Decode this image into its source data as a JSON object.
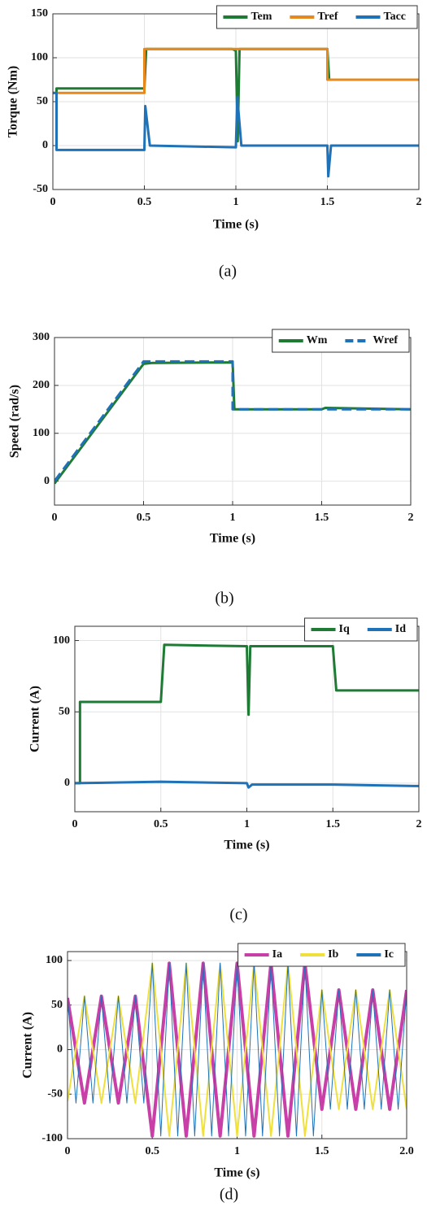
{
  "chart_data": [
    {
      "type": "line",
      "caption": "(a)",
      "xlabel": "Time (s)",
      "ylabel": "Torque (Nm)",
      "xlim": [
        0,
        2
      ],
      "xticks": [
        0,
        0.5,
        1,
        1.5,
        2
      ],
      "ylim": [
        -50,
        150
      ],
      "yticks": [
        -50,
        0,
        50,
        100,
        150
      ],
      "grid": true,
      "legend": "upper right",
      "series": [
        {
          "name": "Tem",
          "color": "#1e7b34",
          "x": [
            0.02,
            0.02,
            0.5,
            0.51,
            0.98,
            1.0,
            1.01,
            1.02,
            1.5,
            1.51,
            2
          ],
          "values": [
            60,
            65,
            65,
            110,
            110,
            108,
            5,
            110,
            110,
            75,
            75
          ]
        },
        {
          "name": "Tref",
          "color": "#e5891e",
          "x": [
            0,
            0.5,
            0.5,
            1.5,
            1.5,
            2
          ],
          "values": [
            60,
            60,
            110,
            110,
            75,
            75
          ]
        },
        {
          "name": "Tacc",
          "color": "#1f72b8",
          "x": [
            0,
            0.02,
            0.02,
            0.5,
            0.505,
            0.53,
            1.0,
            1.008,
            1.03,
            1.5,
            1.505,
            1.52,
            2
          ],
          "values": [
            60,
            60,
            -5,
            -5,
            45,
            0,
            -2,
            55,
            0,
            0,
            -35,
            0,
            0
          ]
        }
      ]
    },
    {
      "type": "line",
      "caption": "(b)",
      "xlabel": "Time (s)",
      "ylabel": "Speed (rad/s)",
      "xlim": [
        0,
        2
      ],
      "xticks": [
        0,
        0.5,
        1,
        1.5,
        2
      ],
      "ylim": [
        -50,
        300
      ],
      "yticks": [
        0,
        100,
        200,
        300
      ],
      "grid": true,
      "legend": "upper right",
      "series": [
        {
          "name": "Wm",
          "color": "#1e7b34",
          "x": [
            0,
            0.5,
            0.55,
            1.0,
            1.01,
            1.5,
            1.52,
            2
          ],
          "values": [
            -5,
            245,
            247,
            248,
            150,
            150,
            153,
            150
          ]
        },
        {
          "name": "Wref",
          "color": "#1f72b8",
          "dash": true,
          "x": [
            0,
            0.5,
            1.0,
            1.0,
            2
          ],
          "values": [
            0,
            250,
            250,
            150,
            150
          ]
        }
      ]
    },
    {
      "type": "line",
      "caption": "(c)",
      "xlabel": "Time (s)",
      "ylabel": "Current (A)",
      "xlim": [
        0,
        2
      ],
      "xticks": [
        0,
        0.5,
        1,
        1.5,
        2
      ],
      "ylim": [
        -20,
        110
      ],
      "yticks": [
        0,
        50,
        100
      ],
      "grid": true,
      "legend": "upper right",
      "series": [
        {
          "name": "Iq",
          "color": "#1e7b34",
          "x": [
            0,
            0.03,
            0.03,
            0.5,
            0.52,
            1.0,
            1.01,
            1.02,
            1.5,
            1.52,
            2
          ],
          "values": [
            0,
            0,
            57,
            57,
            97,
            96,
            48,
            96,
            96,
            65,
            65
          ]
        },
        {
          "name": "Id",
          "color": "#1f72b8",
          "x": [
            0,
            0.5,
            1.0,
            1.01,
            1.03,
            1.5,
            2
          ],
          "values": [
            0,
            1,
            0,
            -3,
            -1,
            -1,
            -2
          ]
        }
      ]
    },
    {
      "type": "line",
      "caption": "(d)",
      "xlabel": "Time (s)",
      "ylabel": "Current (A)",
      "xlim": [
        0,
        2
      ],
      "xticks": [
        0,
        0.5,
        1,
        1.5,
        {
          "value": 2,
          "label": "2.0"
        }
      ],
      "ylim": [
        -100,
        110
      ],
      "yticks": [
        -100,
        -50,
        0,
        50,
        100
      ],
      "grid": true,
      "legend": "upper right",
      "series": [
        {
          "name": "Ia",
          "color": "#c83fa8",
          "width": 4,
          "x": [
            0,
            0.1,
            0.2,
            0.3,
            0.4,
            0.5,
            0.6,
            0.7,
            0.8,
            0.9,
            1.0,
            1.1,
            1.2,
            1.3,
            1.4,
            1.5,
            1.6,
            1.7,
            1.8,
            1.9,
            2.0
          ],
          "values": [
            58,
            -60,
            60,
            -60,
            60,
            -97,
            97,
            -97,
            97,
            -97,
            97,
            -97,
            97,
            -97,
            97,
            -67,
            67,
            -67,
            67,
            -67,
            67
          ]
        },
        {
          "name": "Ib",
          "color": "#f0e03c",
          "width": 2,
          "x": [
            0,
            0.1,
            0.2,
            0.3,
            0.4,
            0.5,
            0.6,
            0.7,
            0.8,
            0.9,
            1.0,
            1.1,
            1.2,
            1.3,
            1.4,
            1.5,
            1.6,
            1.7,
            1.8,
            1.9,
            2.0
          ],
          "values": [
            -58,
            60,
            -60,
            60,
            -60,
            97,
            -97,
            97,
            -97,
            97,
            -97,
            97,
            -97,
            97,
            -97,
            67,
            -67,
            67,
            -67,
            67,
            -67
          ]
        },
        {
          "name": "Ic",
          "color": "#1f72b8",
          "width": 1,
          "x": [
            0,
            0.05,
            0.1,
            0.15,
            0.2,
            0.25,
            0.3,
            0.35,
            0.4,
            0.45,
            0.5,
            0.55,
            0.6,
            0.65,
            0.7,
            0.75,
            0.8,
            0.85,
            0.9,
            0.95,
            1.0,
            1.05,
            1.1,
            1.15,
            1.2,
            1.25,
            1.3,
            1.35,
            1.4,
            1.45,
            1.5,
            1.55,
            1.6,
            1.65,
            1.7,
            1.75,
            1.8,
            1.85,
            1.9,
            1.95,
            2.0
          ],
          "values": [
            60,
            -60,
            60,
            -60,
            60,
            -60,
            60,
            -60,
            60,
            -60,
            97,
            -97,
            97,
            -97,
            97,
            -97,
            97,
            -97,
            97,
            -97,
            97,
            -97,
            97,
            -97,
            97,
            -97,
            97,
            -97,
            97,
            -97,
            67,
            -67,
            67,
            -67,
            67,
            -67,
            67,
            -67,
            67,
            -67,
            67
          ]
        }
      ]
    }
  ]
}
